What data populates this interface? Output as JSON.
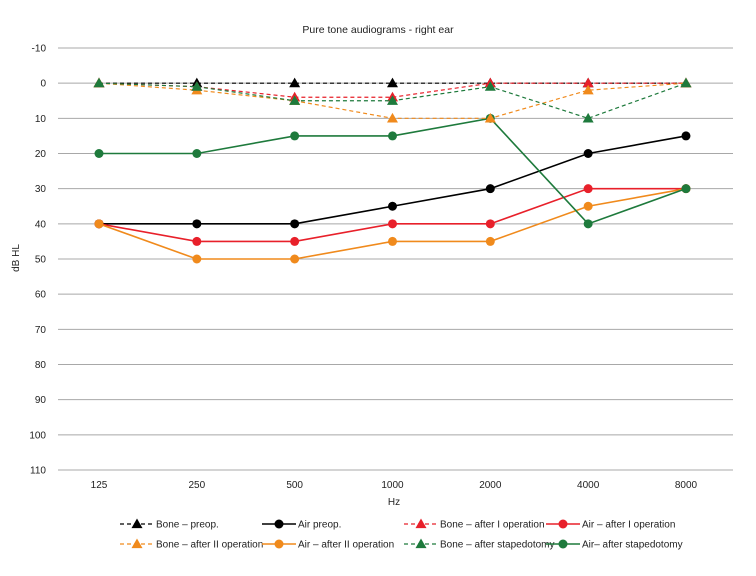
{
  "chart_data": {
    "type": "line",
    "title": "Pure tone audiograms - right ear",
    "xlabel": "Hz",
    "ylabel": "dB HL",
    "categories": [
      "125",
      "250",
      "500",
      "1000",
      "2000",
      "4000",
      "8000"
    ],
    "y_ticks": [
      "-10",
      "0",
      "10",
      "20",
      "30",
      "40",
      "50",
      "60",
      "70",
      "80",
      "90",
      "100",
      "110"
    ],
    "ylim": [
      -10,
      110
    ],
    "y_inverted": true,
    "grid": "horizontal",
    "legend_position": "bottom",
    "series": [
      {
        "name": "Bone – preop.",
        "color": "#000000",
        "dashed": true,
        "marker": "triangle",
        "values": [
          0,
          0,
          0,
          0,
          0,
          0,
          0
        ]
      },
      {
        "name": "Air preop.",
        "color": "#000000",
        "dashed": false,
        "marker": "circle",
        "values": [
          40,
          40,
          40,
          35,
          30,
          20,
          15
        ]
      },
      {
        "name": "Bone – after I operation",
        "color": "#e8202a",
        "dashed": true,
        "marker": "triangle",
        "values": [
          0,
          1,
          4,
          4,
          0,
          0,
          0
        ]
      },
      {
        "name": "Air – after I operation",
        "color": "#e8202a",
        "dashed": false,
        "marker": "circle",
        "values": [
          40,
          45,
          45,
          40,
          40,
          30,
          30
        ]
      },
      {
        "name": "Bone – after II operation",
        "color": "#f08a1c",
        "dashed": true,
        "marker": "triangle",
        "values": [
          0,
          2,
          5,
          10,
          10,
          2,
          0
        ]
      },
      {
        "name": "Air – after II operation",
        "color": "#f08a1c",
        "dashed": false,
        "marker": "circle",
        "values": [
          40,
          50,
          50,
          45,
          45,
          35,
          30
        ]
      },
      {
        "name": "Bone – after stapedotomy",
        "color": "#1e7a3c",
        "dashed": true,
        "marker": "triangle",
        "values": [
          0,
          1,
          5,
          5,
          1,
          10,
          0
        ]
      },
      {
        "name": "Air– after stapedotomy",
        "color": "#1e7a3c",
        "dashed": false,
        "marker": "circle",
        "values": [
          20,
          20,
          15,
          15,
          10,
          40,
          30
        ]
      }
    ]
  }
}
